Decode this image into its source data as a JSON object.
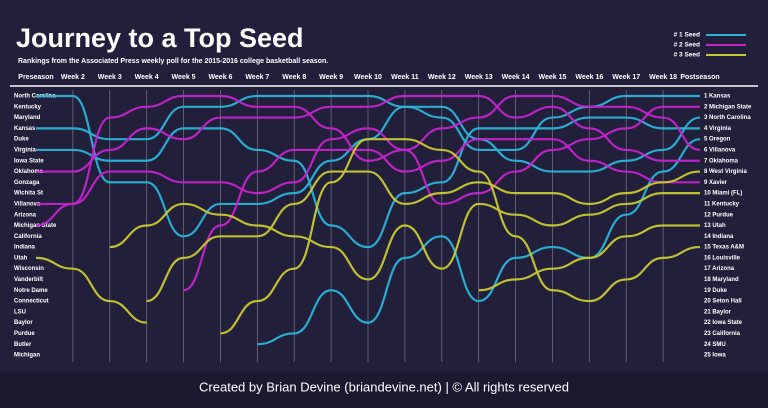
{
  "chart_data": {
    "type": "bump",
    "title": "Journey to a Top Seed",
    "subtitle": "Rankings from the Associated Press weekly poll for the 2015-2016 college basketball season.",
    "footer": "Created by Brian Devine (briandevine.net)  |  © All rights reserved",
    "categories": [
      "Preseason",
      "Week 2",
      "Week 3",
      "Week 4",
      "Week 5",
      "Week 6",
      "Week 7",
      "Week 8",
      "Week 9",
      "Week 10",
      "Week 11",
      "Week 12",
      "Week 13",
      "Week 14",
      "Week 15",
      "Week 16",
      "Week 17",
      "Week 18",
      "Postseason"
    ],
    "ylim": [
      1,
      25
    ],
    "legend": [
      {
        "name": "# 1 Seed",
        "color": "#2ab4d8"
      },
      {
        "name": "# 2 Seed",
        "color": "#c424cc"
      },
      {
        "name": "# 3 Seed",
        "color": "#c8c832"
      }
    ],
    "preseason_teams": [
      "North Carolina",
      "Kentucky",
      "Maryland",
      "Kansas",
      "Duke",
      "Virginia",
      "Iowa State",
      "Oklahoma",
      "Gonzaga",
      "Wichita St",
      "Villanova",
      "Arizona",
      "Michigan State",
      "California",
      "Indiana",
      "Utah",
      "Wisconsin",
      "Vanderbilt",
      "Notre Dame",
      "Connecticut",
      "LSU",
      "Baylor",
      "Purdue",
      "Butler",
      "Michigan"
    ],
    "postseason_labels": [
      "1 Kansas",
      "2 Michigan State",
      "3 North Carolina",
      "4 Virginia",
      "5 Oregon",
      "6 Villanova",
      "7 Oklahoma",
      "8 West Virginia",
      "9 Xavier",
      "10 Miami (FL)",
      "11 Kentucky",
      "12 Purdue",
      "13 Utah",
      "14 Indiana",
      "15 Texas A&M",
      "16 Louisville",
      "17 Arizona",
      "18 Maryland",
      "19 Duke",
      "20 Seton Hall",
      "21 Baylor",
      "22 Iowa State",
      "23 California",
      "24 SMU",
      "25 Iowa"
    ],
    "series": [
      {
        "name": "Kansas",
        "color": "#2ab4d8",
        "values": [
          4,
          4,
          5,
          5,
          2,
          2,
          1,
          1,
          1,
          1,
          2,
          3,
          6,
          6,
          3,
          2,
          1,
          1,
          1
        ]
      },
      {
        "name": "North Carolina",
        "color": "#2ab4d8",
        "values": [
          1,
          1,
          9,
          9,
          14,
          11,
          11,
          10,
          7,
          5,
          2,
          2,
          5,
          7,
          8,
          8,
          7,
          6,
          3
        ]
      },
      {
        "name": "Virginia",
        "color": "#2ab4d8",
        "values": [
          6,
          6,
          7,
          7,
          4,
          4,
          6,
          7,
          13,
          15,
          10,
          9,
          4,
          4,
          4,
          3,
          3,
          4,
          4
        ]
      },
      {
        "name": "Oregon",
        "color": "#2ab4d8",
        "values": [
          null,
          null,
          null,
          null,
          null,
          null,
          24,
          23,
          19,
          22,
          16,
          14,
          20,
          16,
          15,
          16,
          12,
          8,
          5
        ]
      },
      {
        "name": "Michigan State",
        "color": "#c424cc",
        "values": [
          13,
          11,
          3,
          2,
          1,
          1,
          2,
          2,
          4,
          7,
          6,
          11,
          10,
          8,
          6,
          5,
          4,
          2,
          2
        ]
      },
      {
        "name": "Villanova",
        "color": "#c424cc",
        "values": [
          11,
          11,
          8,
          8,
          9,
          9,
          10,
          9,
          5,
          4,
          6,
          4,
          3,
          1,
          1,
          2,
          2,
          3,
          6
        ]
      },
      {
        "name": "Oklahoma",
        "color": "#c424cc",
        "values": [
          8,
          8,
          6,
          4,
          5,
          3,
          3,
          3,
          2,
          2,
          1,
          1,
          1,
          3,
          2,
          4,
          6,
          7,
          7
        ]
      },
      {
        "name": "Xavier",
        "color": "#c424cc",
        "values": [
          null,
          null,
          null,
          null,
          19,
          13,
          8,
          6,
          6,
          6,
          8,
          7,
          5,
          5,
          5,
          7,
          8,
          9,
          9
        ]
      },
      {
        "name": "Miami (FL)",
        "color": "#c8c832",
        "values": [
          null,
          null,
          15,
          13,
          11,
          12,
          13,
          14,
          15,
          18,
          13,
          17,
          11,
          12,
          13,
          12,
          11,
          10,
          10
        ]
      },
      {
        "name": "Utah",
        "color": "#c8c832",
        "values": [
          16,
          17,
          20,
          22,
          null,
          null,
          null,
          null,
          null,
          null,
          null,
          null,
          19,
          18,
          17,
          16,
          14,
          13,
          13
        ]
      },
      {
        "name": "West Virginia",
        "color": "#c8c832",
        "values": [
          null,
          null,
          null,
          20,
          16,
          14,
          14,
          11,
          8,
          8,
          11,
          10,
          9,
          10,
          10,
          11,
          10,
          9,
          8
        ]
      },
      {
        "name": "Texas A&M",
        "color": "#c8c832",
        "values": [
          null,
          null,
          null,
          null,
          null,
          23,
          20,
          17,
          9,
          5,
          5,
          6,
          8,
          14,
          19,
          20,
          18,
          16,
          15
        ]
      }
    ]
  }
}
